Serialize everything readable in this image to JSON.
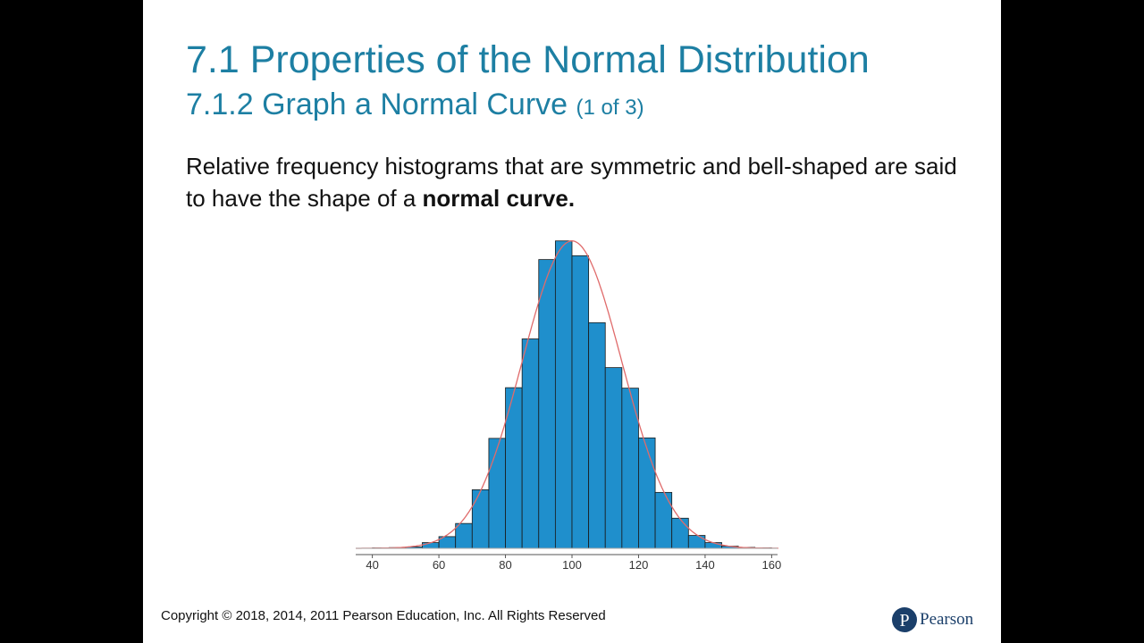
{
  "slide": {
    "title": "7.1 Properties of the Normal Distribution",
    "subtitle": "7.1.2 Graph a Normal Curve",
    "subtitle_part": "(1 of 3)",
    "body_text": "Relative frequency histograms that are symmetric and bell-shaped are said to have the shape of a",
    "body_bold": "normal curve.",
    "copyright": "Copyright © 2018, 2014, 2011 Pearson Education, Inc. All Rights Reserved",
    "logo_text": "Pearson",
    "logo_letter": "P"
  },
  "colors": {
    "title": "#1d7fa3",
    "bar_fill": "#1f8fcc",
    "bar_stroke": "#1a1a1a",
    "curve": "#e06b6b",
    "logo": "#1b3f6a"
  },
  "chart_data": {
    "type": "bar",
    "subtype": "histogram_with_normal_curve",
    "bin_width": 5,
    "bins": [
      {
        "x0": 40,
        "freq": 0.0002
      },
      {
        "x0": 45,
        "freq": 0.0003
      },
      {
        "x0": 50,
        "freq": 0.0006
      },
      {
        "x0": 55,
        "freq": 0.0024
      },
      {
        "x0": 60,
        "freq": 0.0049
      },
      {
        "x0": 65,
        "freq": 0.0104
      },
      {
        "x0": 70,
        "freq": 0.0245
      },
      {
        "x0": 75,
        "freq": 0.046
      },
      {
        "x0": 80,
        "freq": 0.0672
      },
      {
        "x0": 85,
        "freq": 0.0876
      },
      {
        "x0": 90,
        "freq": 0.1208
      },
      {
        "x0": 95,
        "freq": 0.1286
      },
      {
        "x0": 100,
        "freq": 0.1224
      },
      {
        "x0": 105,
        "freq": 0.0944
      },
      {
        "x0": 110,
        "freq": 0.0756
      },
      {
        "x0": 115,
        "freq": 0.067
      },
      {
        "x0": 120,
        "freq": 0.0462
      },
      {
        "x0": 125,
        "freq": 0.0234
      },
      {
        "x0": 130,
        "freq": 0.0126
      },
      {
        "x0": 135,
        "freq": 0.0054
      },
      {
        "x0": 140,
        "freq": 0.0024
      },
      {
        "x0": 145,
        "freq": 0.0009
      },
      {
        "x0": 150,
        "freq": 0.0004
      },
      {
        "x0": 155,
        "freq": 0.0002
      }
    ],
    "curve": {
      "mean": 100,
      "sd": 15
    },
    "xlim": [
      35,
      165
    ],
    "ylim": [
      0,
      0.13
    ],
    "xticks": [
      40,
      60,
      80,
      100,
      120,
      140,
      160
    ],
    "xlabel": "",
    "ylabel": "",
    "grid": false,
    "legend": "none"
  }
}
